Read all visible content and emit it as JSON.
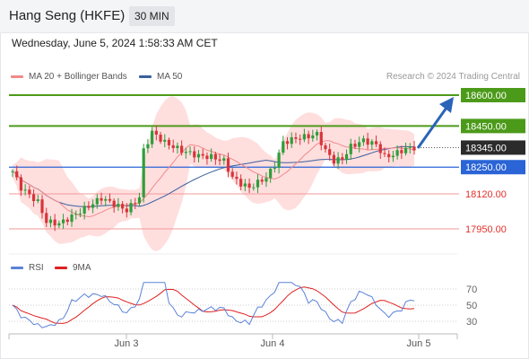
{
  "header": {
    "instrument": "Hang Seng (HKFE)",
    "timeframe": "30 MIN",
    "datetime": "Wednesday, June 5, 2024 1:58:33 AM CET"
  },
  "legend": {
    "ma20": "MA 20 + Bollinger Bands",
    "ma50": "MA 50",
    "credit": "Research © 2024 Trading Central"
  },
  "levels": [
    {
      "label": "18600.00",
      "value": 18600,
      "type": "resistance",
      "color": "#4c9a1a"
    },
    {
      "label": "18450.00",
      "value": 18450,
      "type": "resistance",
      "color": "#4c9a1a"
    },
    {
      "label": "18345.00",
      "value": 18345,
      "type": "last-price",
      "color": "#2b2b2b"
    },
    {
      "label": "18250.00",
      "value": 18250,
      "type": "pivot",
      "color": "#2a64d6"
    },
    {
      "label": "18120.00",
      "value": 18120,
      "type": "support",
      "color": "#e2302a"
    },
    {
      "label": "17950.00",
      "value": 17950,
      "type": "support",
      "color": "#e2302a"
    }
  ],
  "rsi_legend": {
    "rsi": "RSI",
    "ma": "9MA"
  },
  "rsi_axis": {
    "labels": [
      "70",
      "50",
      "30"
    ],
    "values": [
      70,
      50,
      30
    ]
  },
  "x_axis": {
    "labels": [
      "Jun 3",
      "Jun 4",
      "Jun 5"
    ]
  },
  "colors": {
    "up": "#2e9e3a",
    "down": "#d8343a",
    "ma20": "#f08a8a",
    "ma50": "#3a5f9e",
    "band": "#ffdede",
    "rsi": "#5b82d8",
    "rsi_ma": "#e02020"
  },
  "chart_data": {
    "type": "candlestick",
    "series": [
      {
        "name": "MA 20 + Bollinger Bands"
      },
      {
        "name": "MA 50"
      }
    ],
    "last_price": 18345,
    "ylim": [
      17900,
      18650
    ]
  }
}
